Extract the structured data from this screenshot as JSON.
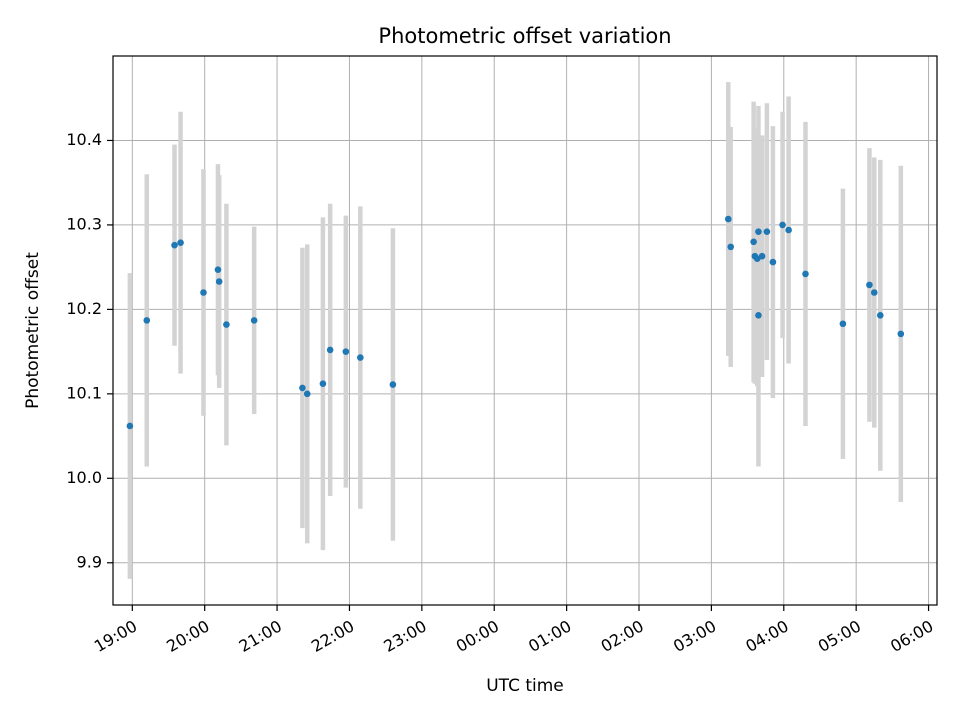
{
  "chart_data": {
    "type": "scatter",
    "title": "Photometric offset variation",
    "xlabel": "UTC time",
    "ylabel": "Photometric offset",
    "grid": true,
    "x_axis": {
      "kind": "time",
      "range": [
        "18:44",
        "06:07"
      ],
      "ticks": [
        "19:00",
        "20:00",
        "21:00",
        "22:00",
        "23:00",
        "00:00",
        "01:00",
        "02:00",
        "03:00",
        "04:00",
        "05:00",
        "06:00"
      ]
    },
    "y_axis": {
      "range": [
        9.85,
        10.5
      ],
      "ticks": [
        9.9,
        10.0,
        10.1,
        10.2,
        10.3,
        10.4
      ],
      "tick_labels": [
        "9.9",
        "10.0",
        "10.1",
        "10.2",
        "10.3",
        "10.4"
      ]
    },
    "colors": {
      "point": "#1f77b4",
      "errorbar": "#d3d3d3",
      "grid": "#b0b0b0",
      "axis": "#000000"
    },
    "series": [
      {
        "points": [
          {
            "x": "18:58",
            "y": 10.062,
            "err": 0.181
          },
          {
            "x": "19:12",
            "y": 10.187,
            "err": 0.173
          },
          {
            "x": "19:35",
            "y": 10.276,
            "err": 0.119
          },
          {
            "x": "19:40",
            "y": 10.279,
            "err": 0.155
          },
          {
            "x": "19:59",
            "y": 10.22,
            "err": 0.146
          },
          {
            "x": "20:11",
            "y": 10.247,
            "err": 0.125
          },
          {
            "x": "20:12",
            "y": 10.233,
            "err": 0.126
          },
          {
            "x": "20:18",
            "y": 10.182,
            "err": 0.143
          },
          {
            "x": "20:41",
            "y": 10.187,
            "err": 0.111
          },
          {
            "x": "21:21",
            "y": 10.107,
            "err": 0.166
          },
          {
            "x": "21:25",
            "y": 10.1,
            "err": 0.177
          },
          {
            "x": "21:38",
            "y": 10.112,
            "err": 0.197
          },
          {
            "x": "21:44",
            "y": 10.152,
            "err": 0.173
          },
          {
            "x": "21:57",
            "y": 10.15,
            "err": 0.161
          },
          {
            "x": "22:09",
            "y": 10.143,
            "err": 0.179
          },
          {
            "x": "22:36",
            "y": 10.111,
            "err": 0.185
          },
          {
            "x": "03:14",
            "y": 10.307,
            "err": 0.162
          },
          {
            "x": "03:16",
            "y": 10.274,
            "err": 0.142
          },
          {
            "x": "03:35",
            "y": 10.28,
            "err": 0.166
          },
          {
            "x": "03:36",
            "y": 10.263,
            "err": 0.151
          },
          {
            "x": "03:38",
            "y": 10.26,
            "err": 0.151
          },
          {
            "x": "03:39",
            "y": 10.193,
            "err": 0.179
          },
          {
            "x": "03:39",
            "y": 10.292,
            "err": 0.149
          },
          {
            "x": "03:42",
            "y": 10.263,
            "err": 0.143
          },
          {
            "x": "03:46",
            "y": 10.292,
            "err": 0.152
          },
          {
            "x": "03:51",
            "y": 10.256,
            "err": 0.161
          },
          {
            "x": "03:59",
            "y": 10.3,
            "err": 0.134
          },
          {
            "x": "04:04",
            "y": 10.294,
            "err": 0.158
          },
          {
            "x": "04:18",
            "y": 10.242,
            "err": 0.18
          },
          {
            "x": "04:49",
            "y": 10.183,
            "err": 0.16
          },
          {
            "x": "05:11",
            "y": 10.229,
            "err": 0.162
          },
          {
            "x": "05:15",
            "y": 10.22,
            "err": 0.16
          },
          {
            "x": "05:20",
            "y": 10.193,
            "err": 0.184
          },
          {
            "x": "05:37",
            "y": 10.171,
            "err": 0.199
          }
        ]
      }
    ]
  }
}
